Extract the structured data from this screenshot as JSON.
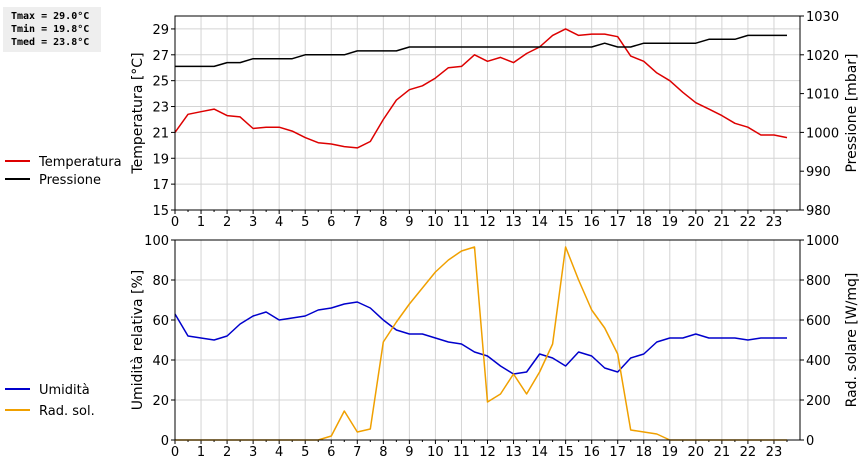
{
  "stats": {
    "tmax": "Tmax = 29.0°C",
    "tmin": "Tmin = 19.8°C",
    "tmed": "Tmed = 23.8°C"
  },
  "chart_data": [
    {
      "type": "line",
      "x": [
        0,
        0.5,
        1,
        1.5,
        2,
        2.5,
        3,
        3.5,
        4,
        4.5,
        5,
        5.5,
        6,
        6.5,
        7,
        7.5,
        8,
        8.5,
        9,
        9.5,
        10,
        10.5,
        11,
        11.5,
        12,
        12.5,
        13,
        13.5,
        14,
        14.5,
        15,
        15.5,
        16,
        16.5,
        17,
        17.5,
        18,
        18.5,
        19,
        19.5,
        20,
        20.5,
        21,
        21.5,
        22,
        22.5,
        23,
        23.5
      ],
      "xlim": [
        0,
        24
      ],
      "xticks": [
        "0",
        "1",
        "2",
        "3",
        "4",
        "5",
        "6",
        "7",
        "8",
        "9",
        "10",
        "11",
        "12",
        "13",
        "14",
        "15",
        "16",
        "17",
        "18",
        "19",
        "20",
        "21",
        "22",
        "23"
      ],
      "ylabel": "Temperatura [°C]",
      "ylim": [
        15,
        30
      ],
      "yticks": [
        "15",
        "17",
        "19",
        "21",
        "23",
        "25",
        "27",
        "29"
      ],
      "y2label": "Pressione [mbar]",
      "y2lim": [
        980,
        1030
      ],
      "y2ticks": [
        "980",
        "990",
        "1000",
        "1010",
        "1020",
        "1030"
      ],
      "grid": true,
      "legend_position": "left",
      "series": [
        {
          "name": "Temperatura",
          "color": "#dd0000",
          "axis": "left",
          "values": [
            21.0,
            22.4,
            22.6,
            22.8,
            22.3,
            22.2,
            21.3,
            21.4,
            21.4,
            21.1,
            20.6,
            20.2,
            20.1,
            19.9,
            19.8,
            20.3,
            22.0,
            23.5,
            24.3,
            24.6,
            25.2,
            26.0,
            26.1,
            27.0,
            26.5,
            26.8,
            26.4,
            27.1,
            27.6,
            28.5,
            29.0,
            28.5,
            28.6,
            28.6,
            28.4,
            26.9,
            26.5,
            25.6,
            25.0,
            24.1,
            23.3,
            22.8,
            22.3,
            21.7,
            21.4,
            20.8,
            20.8,
            20.6
          ]
        },
        {
          "name": "Pressione",
          "color": "#000000",
          "axis": "right",
          "values": [
            1017,
            1017,
            1017,
            1017,
            1018,
            1018,
            1019,
            1019,
            1019,
            1019,
            1020,
            1020,
            1020,
            1020,
            1021,
            1021,
            1021,
            1021,
            1022,
            1022,
            1022,
            1022,
            1022,
            1022,
            1022,
            1022,
            1022,
            1022,
            1022,
            1022,
            1022,
            1022,
            1022,
            1023,
            1022,
            1022,
            1023,
            1023,
            1023,
            1023,
            1023,
            1024,
            1024,
            1024,
            1025,
            1025,
            1025,
            1025
          ]
        }
      ]
    },
    {
      "type": "line",
      "x": [
        0,
        0.5,
        1,
        1.5,
        2,
        2.5,
        3,
        3.5,
        4,
        4.5,
        5,
        5.5,
        6,
        6.5,
        7,
        7.5,
        8,
        8.5,
        9,
        9.5,
        10,
        10.5,
        11,
        11.5,
        12,
        12.5,
        13,
        13.5,
        14,
        14.5,
        15,
        15.5,
        16,
        16.5,
        17,
        17.5,
        18,
        18.5,
        19,
        19.5,
        20,
        20.5,
        21,
        21.5,
        22,
        22.5,
        23,
        23.5
      ],
      "xlim": [
        0,
        24
      ],
      "xticks": [
        "0",
        "1",
        "2",
        "3",
        "4",
        "5",
        "6",
        "7",
        "8",
        "9",
        "10",
        "11",
        "12",
        "13",
        "14",
        "15",
        "16",
        "17",
        "18",
        "19",
        "20",
        "21",
        "22",
        "23"
      ],
      "ylabel": "Umidità relativa [%]",
      "ylim": [
        0,
        100
      ],
      "yticks": [
        "0",
        "20",
        "40",
        "60",
        "80",
        "100"
      ],
      "y2label": "Rad. solare [W/mq]",
      "y2lim": [
        0,
        1000
      ],
      "y2ticks": [
        "0",
        "200",
        "400",
        "600",
        "800",
        "1000"
      ],
      "grid": true,
      "legend_position": "left",
      "series": [
        {
          "name": "Umidità",
          "color": "#0000cc",
          "axis": "left",
          "values": [
            63,
            52,
            51,
            50,
            52,
            58,
            62,
            64,
            60,
            61,
            62,
            65,
            66,
            68,
            69,
            66,
            60,
            55,
            53,
            53,
            51,
            49,
            48,
            44,
            42,
            37,
            33,
            34,
            43,
            41,
            37,
            44,
            42,
            36,
            34,
            41,
            43,
            49,
            51,
            51,
            53,
            51,
            51,
            51,
            50,
            51,
            51,
            51
          ]
        },
        {
          "name": "Rad. sol.",
          "color": "#f0a000",
          "axis": "right",
          "values": [
            0,
            0,
            0,
            0,
            0,
            0,
            0,
            0,
            0,
            0,
            0,
            0,
            20,
            145,
            40,
            55,
            490,
            590,
            680,
            760,
            840,
            900,
            945,
            965,
            190,
            230,
            330,
            230,
            340,
            480,
            965,
            800,
            650,
            560,
            430,
            50,
            40,
            30,
            0,
            0,
            0,
            0,
            0,
            0,
            0,
            0,
            0,
            0
          ]
        }
      ]
    }
  ]
}
